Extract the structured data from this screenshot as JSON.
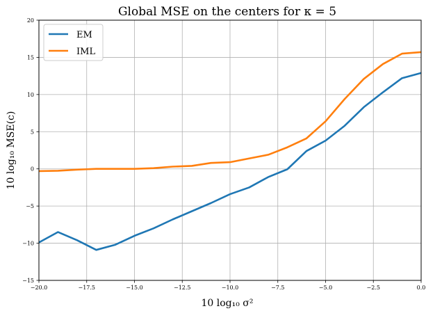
{
  "chart_data": {
    "type": "line",
    "title": "Global MSE on the centers for κ = 5",
    "xlabel": "10 log₁₀ σ²",
    "ylabel": "10 log₁₀ MSE(c)",
    "xlim": [
      -20,
      0
    ],
    "ylim": [
      -15,
      20
    ],
    "xticks": [
      -20,
      -17.5,
      -15,
      -12.5,
      -10,
      -7.5,
      -5,
      -2.5,
      0
    ],
    "xtick_labels": [
      "−20.0",
      "−17.5",
      "−15.0",
      "−12.5",
      "−10.0",
      "−7.5",
      "−5.0",
      "−2.5",
      "0.0"
    ],
    "yticks": [
      -15,
      -10,
      -5,
      0,
      5,
      10,
      15,
      20
    ],
    "ytick_labels": [
      "−15",
      "−10",
      "−5",
      "0",
      "5",
      "10",
      "15",
      "20"
    ],
    "grid": true,
    "legend_position": "top-left",
    "x": [
      -20,
      -19,
      -18,
      -17,
      -16,
      -15,
      -14,
      -13,
      -12,
      -11,
      -10,
      -9,
      -8,
      -7,
      -6,
      -5,
      -4,
      -3,
      -2,
      -1,
      0
    ],
    "series": [
      {
        "name": "EM",
        "color": "#1f77b4",
        "values": [
          -9.9,
          -8.5,
          -9.6,
          -10.9,
          -10.2,
          -9.0,
          -8.0,
          -6.8,
          -5.7,
          -4.6,
          -3.4,
          -2.5,
          -1.1,
          -0.05,
          2.4,
          3.8,
          5.8,
          8.3,
          10.3,
          12.2,
          12.9
        ]
      },
      {
        "name": "IML",
        "color": "#ff7f0e",
        "values": [
          -0.3,
          -0.25,
          -0.1,
          0.0,
          0.0,
          0.0,
          0.1,
          0.3,
          0.4,
          0.8,
          0.9,
          1.4,
          1.9,
          2.9,
          4.1,
          6.4,
          9.4,
          12.1,
          14.1,
          15.5,
          15.7
        ]
      }
    ]
  }
}
